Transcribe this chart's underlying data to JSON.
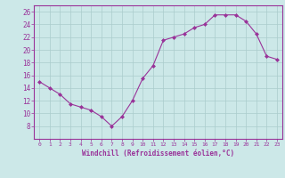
{
  "x": [
    0,
    1,
    2,
    3,
    4,
    5,
    6,
    7,
    8,
    9,
    10,
    11,
    12,
    13,
    14,
    15,
    16,
    17,
    18,
    19,
    20,
    21,
    22,
    23
  ],
  "y": [
    15,
    14,
    13,
    11.5,
    11,
    10.5,
    9.5,
    8,
    9.5,
    12,
    15.5,
    17.5,
    21.5,
    22,
    22.5,
    23.5,
    24,
    25.5,
    25.5,
    25.5,
    24.5,
    22.5,
    19,
    18.5
  ],
  "line_color": "#993399",
  "marker": "D",
  "marker_size": 2,
  "bg_color": "#cce8e8",
  "grid_color": "#aacccc",
  "xlabel": "Windchill (Refroidissement éolien,°C)",
  "xlabel_color": "#993399",
  "tick_color": "#993399",
  "ylim": [
    6,
    27
  ],
  "xlim": [
    -0.5,
    23.5
  ],
  "yticks": [
    8,
    10,
    12,
    14,
    16,
    18,
    20,
    22,
    24,
    26
  ],
  "xtick_labels": [
    "0",
    "1",
    "2",
    "3",
    "4",
    "5",
    "6",
    "7",
    "8",
    "9",
    "10",
    "11",
    "12",
    "13",
    "14",
    "15",
    "16",
    "17",
    "18",
    "19",
    "20",
    "21",
    "22",
    "23"
  ]
}
